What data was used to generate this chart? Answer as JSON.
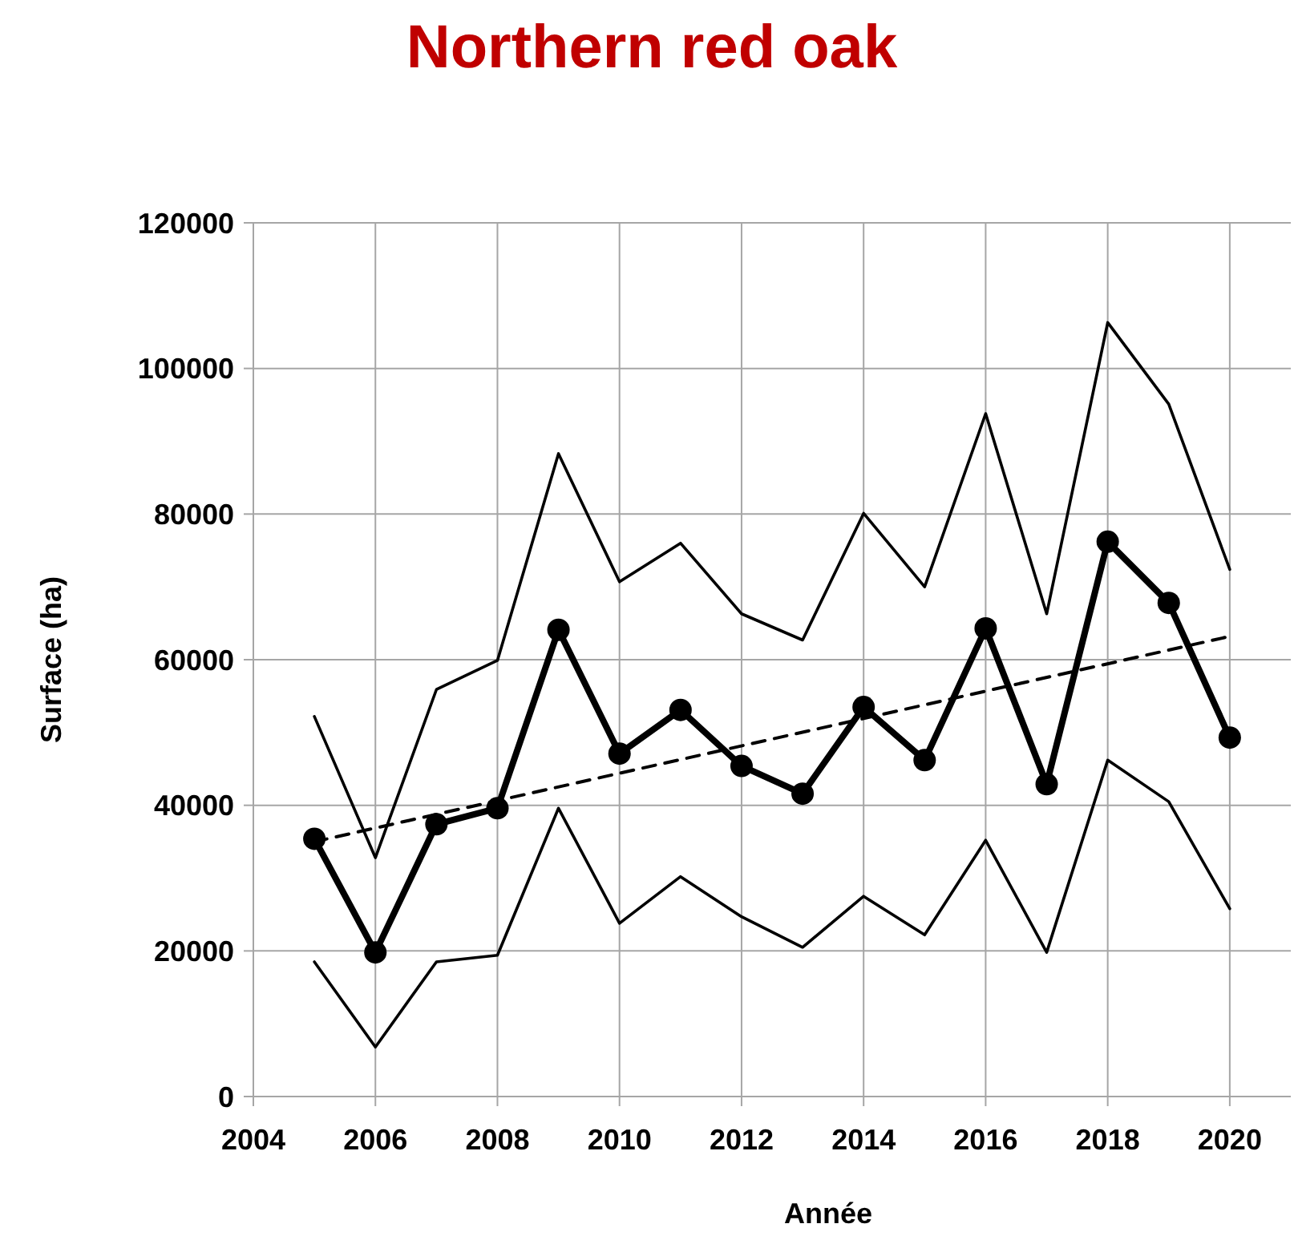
{
  "chart_data": {
    "type": "line",
    "title": "Northern red oak",
    "xlabel": "Année",
    "ylabel": "Surface (ha)",
    "xlim": [
      2004,
      2021
    ],
    "xticks": [
      2004,
      2006,
      2008,
      2010,
      2012,
      2014,
      2016,
      2018,
      2020
    ],
    "ylim": [
      0,
      120000
    ],
    "yticks": [
      0,
      20000,
      40000,
      60000,
      80000,
      100000,
      120000
    ],
    "grid": true,
    "x": [
      2005,
      2006,
      2007,
      2008,
      2009,
      2010,
      2011,
      2012,
      2013,
      2014,
      2015,
      2016,
      2017,
      2018,
      2019,
      2020
    ],
    "series": [
      {
        "color": "#000000",
        "marker": "none",
        "line_style": "solid",
        "values": [
          52200,
          32800,
          55900,
          59900,
          88300,
          70700,
          76000,
          66300,
          62700,
          80100,
          70000,
          93800,
          66300,
          106300,
          95100,
          72400
        ]
      },
      {
        "color": "#000000",
        "marker": "none",
        "line_style": "solid",
        "values": [
          18500,
          6800,
          18500,
          19400,
          39600,
          23800,
          30200,
          24700,
          20500,
          27500,
          22200,
          35200,
          19800,
          46200,
          40500,
          25800
        ]
      },
      {
        "color": "#000000",
        "marker": "circle",
        "line_style": "solid",
        "values": [
          35400,
          19800,
          37400,
          39600,
          64100,
          47100,
          53100,
          45400,
          41600,
          53500,
          46200,
          64300,
          42900,
          76200,
          67800,
          49300
        ]
      },
      {
        "type": "line",
        "color": "#000000",
        "marker": "none",
        "line_style": "dashed",
        "x": [
          2005,
          2020
        ],
        "values": [
          35000,
          63200
        ]
      }
    ]
  }
}
